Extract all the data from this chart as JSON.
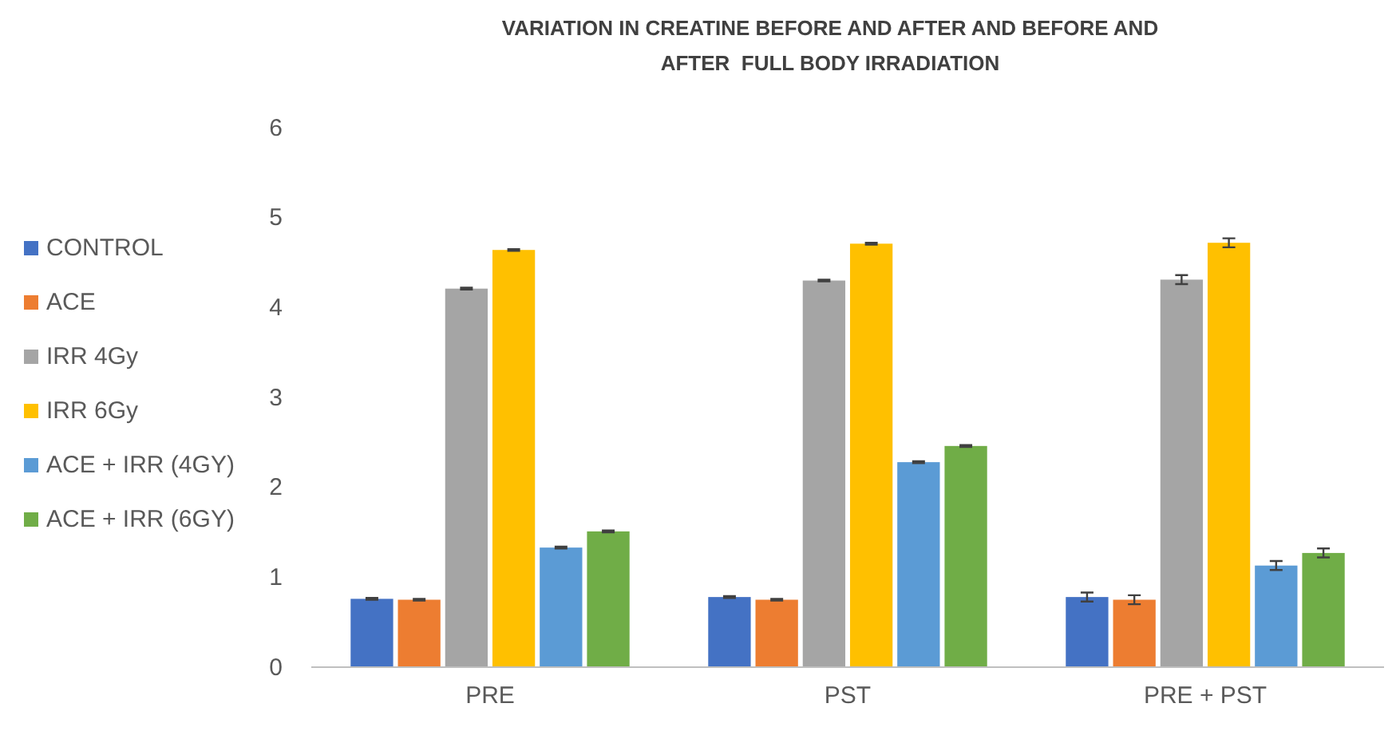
{
  "chart_data": {
    "type": "bar",
    "title": "VARIATION IN CREATINE BEFORE AND AFTER AND BEFORE AND AFTER  FULL BODY IRRADIATION",
    "categories": [
      "PRE",
      "PST",
      "PRE + PST"
    ],
    "series": [
      {
        "name": "CONTROL",
        "color": "#4472c4",
        "values": [
          0.76,
          0.78,
          0.78
        ],
        "errors": [
          0.01,
          0.01,
          0.05
        ]
      },
      {
        "name": "ACE",
        "color": "#ed7d31",
        "values": [
          0.75,
          0.75,
          0.75
        ],
        "errors": [
          0.01,
          0.01,
          0.05
        ]
      },
      {
        "name": "IRR 4Gy",
        "color": "#a5a5a5",
        "values": [
          4.21,
          4.3,
          4.31
        ],
        "errors": [
          0.01,
          0.01,
          0.05
        ]
      },
      {
        "name": "IRR 6Gy",
        "color": "#ffc000",
        "values": [
          4.64,
          4.71,
          4.72
        ],
        "errors": [
          0.01,
          0.01,
          0.05
        ]
      },
      {
        "name": "ACE + IRR (4GY)",
        "color": "#5b9bd5",
        "values": [
          1.33,
          2.28,
          1.13
        ],
        "errors": [
          0.01,
          0.01,
          0.05
        ]
      },
      {
        "name": "ACE + IRR (6GY)",
        "color": "#70ad47",
        "values": [
          1.51,
          2.46,
          1.27
        ],
        "errors": [
          0.01,
          0.01,
          0.05
        ]
      }
    ],
    "ylim": [
      0,
      6
    ],
    "yticks": [
      0,
      1,
      2,
      3,
      4,
      5,
      6
    ],
    "grid": false,
    "legend": "left"
  }
}
